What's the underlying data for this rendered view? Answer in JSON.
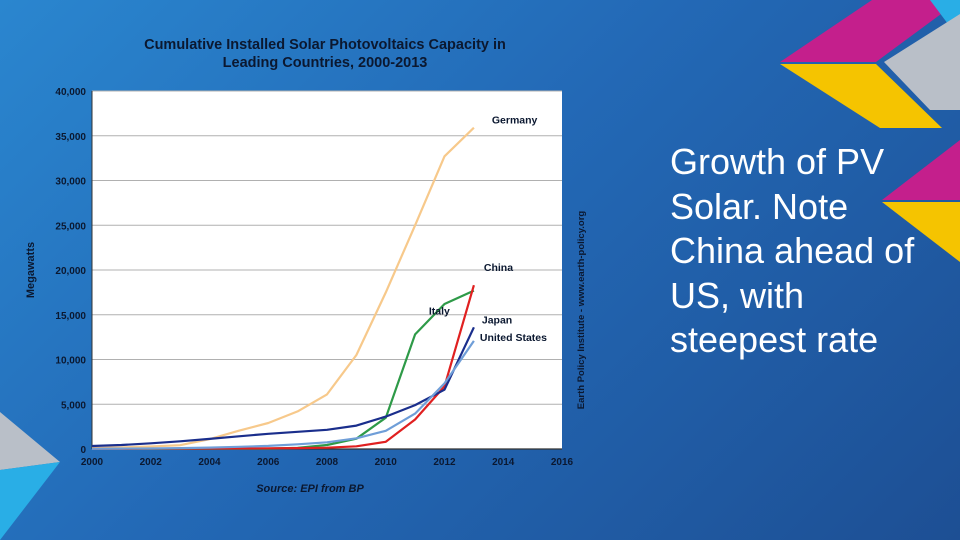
{
  "slide": {
    "body_text": "Growth of PV Solar. Note China ahead of US, with steepest rate",
    "colors": {
      "background": "#2369b6",
      "magenta": "#c41f8c",
      "yellow": "#f5c400",
      "cyan": "#29aee6",
      "grey": "#b9bfc8"
    }
  },
  "chart_data": {
    "type": "line",
    "title_line1": "Cumulative Installed Solar Photovoltaics Capacity in",
    "title_line2": "Leading Countries, 2000-2013",
    "xlabel": "",
    "ylabel": "Megawatts",
    "source": "Source: EPI from BP",
    "credit": "Earth Policy Institute - www.earth-policy.org",
    "xlim": [
      2000,
      2016
    ],
    "ylim": [
      0,
      40000
    ],
    "x_ticks": [
      "2000",
      "2002",
      "2004",
      "2006",
      "2008",
      "2010",
      "2012",
      "2014",
      "2016"
    ],
    "y_ticks": [
      "0",
      "5,000",
      "10,000",
      "15,000",
      "20,000",
      "25,000",
      "30,000",
      "35,000",
      "40,000"
    ],
    "grid": true,
    "x": [
      2000,
      2001,
      2002,
      2003,
      2004,
      2005,
      2006,
      2007,
      2008,
      2009,
      2010,
      2011,
      2012,
      2013
    ],
    "series": [
      {
        "name": "Germany",
        "color": "#f7c98b",
        "values": [
          100,
          180,
          280,
          430,
          1100,
          2050,
          2900,
          4200,
          6100,
          10500,
          17500,
          25000,
          32700,
          35900
        ]
      },
      {
        "name": "Italy",
        "color": "#2e9a48",
        "values": [
          20,
          20,
          20,
          25,
          30,
          40,
          50,
          120,
          450,
          1150,
          3500,
          12800,
          16200,
          17700
        ]
      },
      {
        "name": "China",
        "color": "#e02020",
        "values": [
          20,
          25,
          40,
          50,
          60,
          70,
          80,
          100,
          140,
          300,
          800,
          3300,
          7000,
          18300
        ]
      },
      {
        "name": "Japan",
        "color": "#1a2e8c",
        "values": [
          330,
          450,
          640,
          860,
          1130,
          1420,
          1700,
          1920,
          2140,
          2620,
          3620,
          4910,
          6630,
          13600
        ]
      },
      {
        "name": "United States",
        "color": "#6f9ed8",
        "values": [
          20,
          40,
          60,
          100,
          160,
          250,
          350,
          520,
          750,
          1190,
          2030,
          3960,
          7330,
          12080
        ]
      }
    ]
  }
}
